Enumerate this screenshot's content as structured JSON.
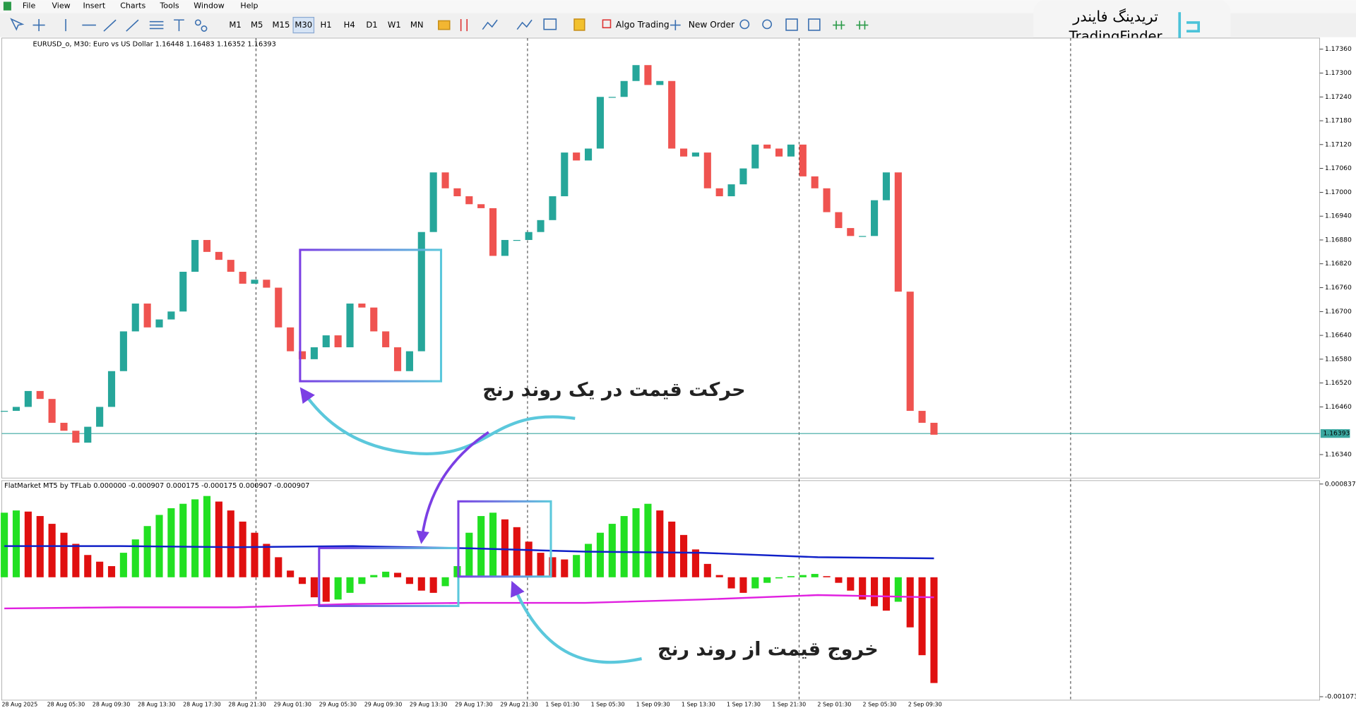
{
  "menu": [
    "File",
    "View",
    "Insert",
    "Charts",
    "Tools",
    "Window",
    "Help"
  ],
  "toolbar": {
    "timeframes": [
      "M1",
      "M5",
      "M15",
      "M30",
      "H1",
      "H4",
      "D1",
      "W1",
      "MN"
    ],
    "algo_trading": "Algo Trading",
    "new_order": "New Order"
  },
  "logo": {
    "brand_fa": "تریدینگ فایندر",
    "brand_en": "TradingFinder"
  },
  "main_chart": {
    "header": "EURUSD_o, M30:  Euro vs US Dollar  1.16448 1.16483 1.16352 1.16393",
    "ylim": [
      1.16281,
      1.17388
    ],
    "price_ticks": [
      {
        "value": 1.1736,
        "label": "1.17360"
      },
      {
        "value": 1.173,
        "label": "1.17300"
      },
      {
        "value": 1.1724,
        "label": "1.17240"
      },
      {
        "value": 1.1718,
        "label": "1.17180"
      },
      {
        "value": 1.1712,
        "label": "1.17120"
      },
      {
        "value": 1.1706,
        "label": "1.17060"
      },
      {
        "value": 1.17,
        "label": "1.17000"
      },
      {
        "value": 1.1694,
        "label": "1.16940"
      },
      {
        "value": 1.1688,
        "label": "1.16880"
      },
      {
        "value": 1.1682,
        "label": "1.16820"
      },
      {
        "value": 1.1676,
        "label": "1.16760"
      },
      {
        "value": 1.167,
        "label": "1.16700"
      },
      {
        "value": 1.1664,
        "label": "1.16640"
      },
      {
        "value": 1.1658,
        "label": "1.16580"
      },
      {
        "value": 1.1652,
        "label": "1.16520"
      },
      {
        "value": 1.1646,
        "label": "1.16460"
      },
      {
        "value": 1.1634,
        "label": "1.16340"
      }
    ],
    "current_price": {
      "value": 1.16393,
      "label": "1.16393"
    },
    "closes": [
      1.1645,
      1.1646,
      1.165,
      1.1648,
      1.1642,
      1.164,
      1.1637,
      1.1641,
      1.1646,
      1.1655,
      1.1665,
      1.1672,
      1.1666,
      1.1668,
      1.167,
      1.168,
      1.1688,
      1.1685,
      1.1683,
      1.168,
      1.1677,
      1.1678,
      1.1676,
      1.1666,
      1.166,
      1.1658,
      1.1661,
      1.1664,
      1.1661,
      1.1672,
      1.1671,
      1.1665,
      1.1661,
      1.1655,
      1.166,
      1.169,
      1.1705,
      1.1701,
      1.1699,
      1.1697,
      1.1696,
      1.1684,
      1.1688,
      1.1688,
      1.169,
      1.1693,
      1.1699,
      1.171,
      1.1708,
      1.1711,
      1.1724,
      1.1724,
      1.1728,
      1.1732,
      1.1727,
      1.1728,
      1.1711,
      1.1709,
      1.171,
      1.1701,
      1.1699,
      1.1702,
      1.1706,
      1.1712,
      1.1711,
      1.1709,
      1.1712,
      1.1704,
      1.1701,
      1.1695,
      1.1691,
      1.1689,
      1.1689,
      1.1698,
      1.1705,
      1.1675,
      1.1645,
      1.1642,
      1.1639
    ]
  },
  "indicator": {
    "header": "FlatMarket MT5 by TFLab 0.000000 -0.000907 0.000175 -0.000175 0.000907 -0.000907",
    "ylim": [
      -0.001073,
      0.000837
    ],
    "yticks": [
      {
        "value": 0.000837,
        "label": "0.000837"
      },
      {
        "value": -0.001073,
        "label": "-0.001073"
      }
    ],
    "values": [
      0.00058,
      0.0006,
      0.00059,
      0.00055,
      0.00048,
      0.0004,
      0.0003,
      0.0002,
      0.00014,
      0.0001,
      0.00022,
      0.00034,
      0.00046,
      0.00056,
      0.00062,
      0.00066,
      0.0007,
      0.00073,
      0.00068,
      0.0006,
      0.0005,
      0.0004,
      0.0003,
      0.00018,
      6e-05,
      -6e-05,
      -0.00018,
      -0.00022,
      -0.0002,
      -0.00014,
      -6e-05,
      2e-05,
      5e-05,
      4e-05,
      -6e-05,
      -0.00012,
      -0.00014,
      -8e-05,
      0.0001,
      0.0004,
      0.00055,
      0.00058,
      0.00052,
      0.00045,
      0.00032,
      0.00022,
      0.00018,
      0.00016,
      0.0002,
      0.0003,
      0.0004,
      0.00048,
      0.00055,
      0.00062,
      0.00066,
      0.0006,
      0.0005,
      0.00038,
      0.00025,
      0.00012,
      2e-05,
      -0.0001,
      -0.00014,
      -0.0001,
      -5e-05,
      -1e-05,
      1e-05,
      2e-05,
      3e-05,
      1e-05,
      -5e-05,
      -0.00012,
      -0.0002,
      -0.00026,
      -0.0003,
      -0.00022,
      -0.00045,
      -0.0007,
      -0.00095
    ],
    "upper_line": [
      0.00028,
      0.00028,
      0.00027,
      0.00028,
      0.00026,
      0.00023,
      0.00022,
      0.00018,
      0.00017
    ],
    "lower_line": [
      -0.00028,
      -0.00027,
      -0.00027,
      -0.00024,
      -0.00023,
      -0.00023,
      -0.0002,
      -0.00016,
      -0.00018
    ]
  },
  "time_labels": [
    "28 Aug 2025",
    "28 Aug 05:30",
    "28 Aug 09:30",
    "28 Aug 13:30",
    "28 Aug 17:30",
    "28 Aug 21:30",
    "29 Aug 01:30",
    "29 Aug 05:30",
    "29 Aug 09:30",
    "29 Aug 13:30",
    "29 Aug 17:30",
    "29 Aug 21:30",
    "1 Sep 01:30",
    "1 Sep 05:30",
    "1 Sep 09:30",
    "1 Sep 13:30",
    "1 Sep 17:30",
    "1 Sep 21:30",
    "2 Sep 01:30",
    "2 Sep 05:30",
    "2 Sep 09:30"
  ],
  "annotations": {
    "range_move": "حرکت قیمت در یک روند رنج",
    "range_exit": "خروج قیمت از روند رنج"
  }
}
